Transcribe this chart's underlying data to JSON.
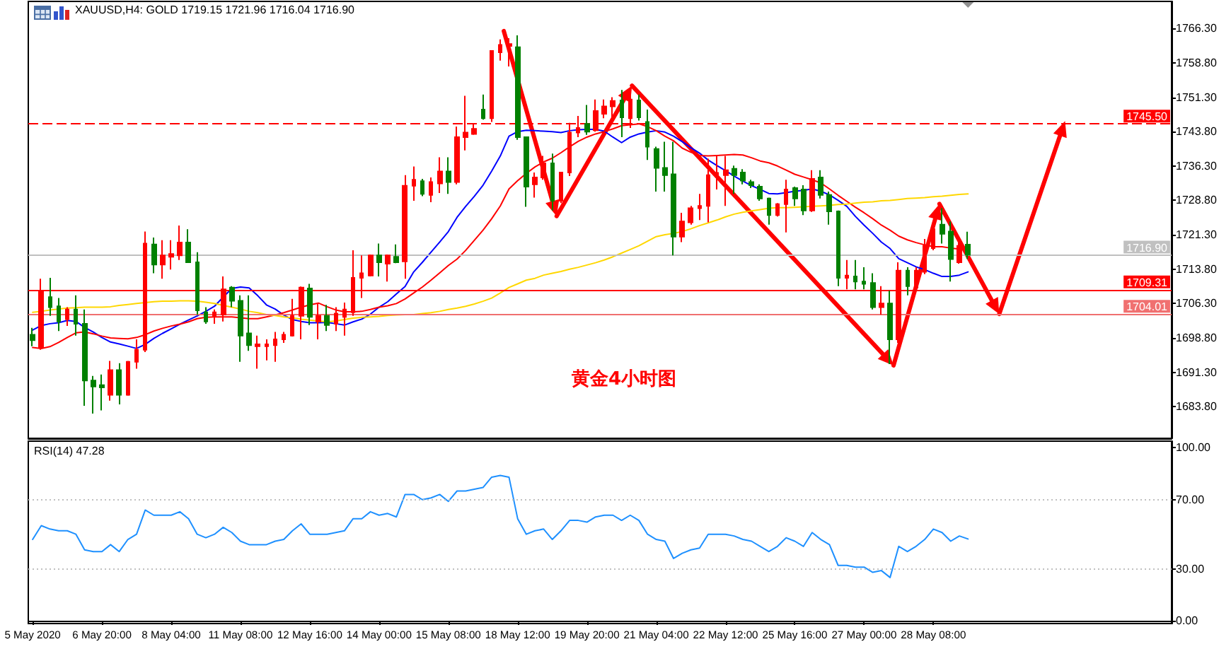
{
  "chart_data": [
    {
      "type": "candlestick",
      "title": "XAUUSD,H4: GOLD 1719.15 1721.96 1716.04 1716.90",
      "categories": [
        null,
        null,
        null,
        null,
        null,
        null,
        null,
        null,
        null,
        null,
        null,
        null,
        null,
        null,
        null,
        null,
        null,
        null,
        null,
        null,
        null,
        null,
        null,
        null,
        null,
        null,
        null,
        null,
        null,
        null,
        null,
        null,
        null,
        null,
        null,
        null,
        null,
        null,
        null,
        null,
        null,
        null,
        null,
        null,
        null,
        null,
        null,
        null,
        null,
        null,
        null,
        null,
        null,
        null,
        null,
        null,
        null,
        null,
        null,
        null,
        null,
        null,
        null,
        null,
        null,
        null,
        null,
        null,
        null,
        null,
        null,
        null,
        null,
        null,
        null,
        null,
        null,
        null,
        null,
        null,
        null,
        null,
        null,
        null,
        null,
        null,
        null,
        null,
        null,
        null,
        null,
        null,
        null,
        null,
        null,
        null,
        null,
        null,
        null,
        null,
        null,
        null,
        null,
        null,
        null,
        null,
        null,
        null,
        null,
        null,
        null,
        null,
        null,
        null,
        null,
        null,
        null,
        null,
        null,
        null,
        null,
        null,
        null,
        null,
        null,
        null,
        null,
        null,
        null,
        null,
        null,
        null
      ],
      "ohlc": [
        [
          1699.5,
          1701.0,
          1697.0,
          1698.3
        ],
        [
          1696.7,
          1711.7,
          1696.2,
          1709.1
        ],
        [
          1707.7,
          1711.9,
          1703.6,
          1705.5
        ],
        [
          1705.7,
          1707.5,
          1700.3,
          1702.4
        ],
        [
          1702.9,
          1705.5,
          1701.4,
          1705.0
        ],
        [
          1705.0,
          1708.1,
          1699.3,
          1701.9
        ],
        [
          1701.9,
          1705.0,
          1684.0,
          1689.5
        ],
        [
          1689.5,
          1690.5,
          1682.3,
          1688.2
        ],
        [
          1688.5,
          1690.8,
          1683.0,
          1688.0
        ],
        [
          1686.4,
          1693.8,
          1685.1,
          1691.8
        ],
        [
          1691.8,
          1693.3,
          1684.3,
          1686.4
        ],
        [
          1686.4,
          1693.8,
          1686.2,
          1693.6
        ],
        [
          1693.6,
          1698.5,
          1692.1,
          1696.2
        ],
        [
          1696.2,
          1722.0,
          1695.7,
          1719.4
        ],
        [
          1719.2,
          1720.7,
          1712.9,
          1714.8
        ],
        [
          1714.8,
          1720.1,
          1711.7,
          1716.8
        ],
        [
          1716.5,
          1720.1,
          1713.7,
          1717.1
        ],
        [
          1716.8,
          1723.3,
          1715.8,
          1719.6
        ],
        [
          1719.6,
          1722.5,
          1715.2,
          1715.3
        ],
        [
          1715.3,
          1717.5,
          1703.9,
          1704.8
        ],
        [
          1704.4,
          1705.5,
          1701.9,
          1702.4
        ],
        [
          1703.6,
          1705.0,
          1701.9,
          1704.4
        ],
        [
          1703.9,
          1712.2,
          1702.4,
          1709.4
        ],
        [
          1709.8,
          1710.1,
          1705.5,
          1706.9
        ],
        [
          1706.9,
          1708.1,
          1693.6,
          1699.3
        ],
        [
          1699.8,
          1708.1,
          1696.0,
          1697.2
        ],
        [
          1697.0,
          1699.3,
          1692.1,
          1697.4
        ],
        [
          1697.0,
          1698.5,
          1693.9,
          1697.4
        ],
        [
          1697.2,
          1700.1,
          1693.6,
          1698.5
        ],
        [
          1698.5,
          1700.1,
          1697.7,
          1699.5
        ],
        [
          1699.3,
          1707.3,
          1699.1,
          1703.6
        ],
        [
          1703.6,
          1710.0,
          1698.5,
          1709.8
        ],
        [
          1709.6,
          1710.6,
          1701.6,
          1703.4
        ],
        [
          1702.4,
          1706.5,
          1698.5,
          1703.6
        ],
        [
          1703.6,
          1706.0,
          1700.3,
          1701.6
        ],
        [
          1701.9,
          1705.5,
          1700.3,
          1704.1
        ],
        [
          1703.4,
          1706.5,
          1699.3,
          1705.0
        ],
        [
          1704.4,
          1717.9,
          1703.6,
          1711.9
        ],
        [
          1711.9,
          1716.8,
          1707.5,
          1712.9
        ],
        [
          1712.4,
          1717.0,
          1712.2,
          1716.8
        ],
        [
          1716.8,
          1719.4,
          1712.2,
          1715.3
        ],
        [
          1715.0,
          1717.0,
          1711.1,
          1716.8
        ],
        [
          1716.5,
          1719.2,
          1715.1,
          1715.3
        ],
        [
          1715.5,
          1734.3,
          1711.7,
          1732.0
        ],
        [
          1732.0,
          1736.2,
          1728.7,
          1733.3
        ],
        [
          1733.0,
          1733.5,
          1729.7,
          1730.2
        ],
        [
          1730.0,
          1733.8,
          1728.4,
          1732.8
        ],
        [
          1732.5,
          1738.2,
          1730.4,
          1735.1
        ],
        [
          1735.1,
          1738.2,
          1730.2,
          1732.8
        ],
        [
          1732.8,
          1744.9,
          1732.3,
          1742.6
        ],
        [
          1742.6,
          1751.6,
          1739.7,
          1743.6
        ],
        [
          1743.3,
          1745.4,
          1743.1,
          1744.4
        ],
        [
          1748.6,
          1751.9,
          1746.4,
          1746.7
        ],
        [
          1746.7,
          1761.4,
          1745.9,
          1761.4
        ],
        [
          1761.1,
          1763.9,
          1759.3,
          1762.7
        ],
        [
          1762.5,
          1764.2,
          1758.0,
          1762.9
        ],
        [
          1762.2,
          1764.8,
          1742.0,
          1742.6
        ],
        [
          1742.6,
          1742.6,
          1727.4,
          1731.8
        ],
        [
          1732.3,
          1734.9,
          1729.4,
          1733.8
        ],
        [
          1733.8,
          1738.5,
          1733.3,
          1736.9
        ],
        [
          1736.9,
          1739.0,
          1726.6,
          1728.7
        ],
        [
          1728.7,
          1734.9,
          1728.2,
          1734.9
        ],
        [
          1734.9,
          1745.7,
          1734.1,
          1743.6
        ],
        [
          1743.6,
          1747.2,
          1742.6,
          1744.6
        ],
        [
          1745.5,
          1749.6,
          1743.1,
          1743.8
        ],
        [
          1744.1,
          1750.8,
          1743.8,
          1748.3
        ],
        [
          1747.7,
          1750.8,
          1746.7,
          1749.3
        ],
        [
          1749.3,
          1751.3,
          1745.7,
          1750.5
        ],
        [
          1750.6,
          1752.9,
          1742.6,
          1746.9
        ],
        [
          1746.7,
          1752.9,
          1744.6,
          1750.8
        ],
        [
          1750.6,
          1751.9,
          1746.2,
          1746.9
        ],
        [
          1745.9,
          1748.6,
          1737.6,
          1740.5
        ],
        [
          1740.0,
          1740.5,
          1730.7,
          1735.9
        ],
        [
          1735.9,
          1741.6,
          1730.7,
          1734.3
        ],
        [
          1734.5,
          1741.6,
          1716.8,
          1720.9
        ],
        [
          1720.9,
          1726.1,
          1719.7,
          1724.2
        ],
        [
          1724.0,
          1727.6,
          1723.5,
          1727.1
        ],
        [
          1727.1,
          1730.2,
          1724.5,
          1727.6
        ],
        [
          1727.6,
          1737.9,
          1724.0,
          1734.3
        ],
        [
          1734.0,
          1738.5,
          1731.2,
          1734.8
        ],
        [
          1734.3,
          1738.5,
          1727.6,
          1735.4
        ],
        [
          1735.7,
          1736.4,
          1730.2,
          1734.3
        ],
        [
          1734.9,
          1735.6,
          1732.3,
          1733.1
        ],
        [
          1732.8,
          1733.3,
          1731.5,
          1732.1
        ],
        [
          1731.8,
          1732.3,
          1728.7,
          1729.2
        ],
        [
          1729.2,
          1729.4,
          1723.5,
          1725.6
        ],
        [
          1725.6,
          1728.2,
          1725.3,
          1728.0
        ],
        [
          1728.0,
          1733.3,
          1721.8,
          1731.2
        ],
        [
          1731.5,
          1731.8,
          1727.6,
          1729.2
        ],
        [
          1731.2,
          1732.1,
          1725.6,
          1726.6
        ],
        [
          1726.6,
          1735.4,
          1726.3,
          1733.5
        ],
        [
          1733.8,
          1735.4,
          1729.2,
          1730.0
        ],
        [
          1730.0,
          1730.7,
          1723.5,
          1726.4
        ],
        [
          1726.4,
          1726.6,
          1710.1,
          1711.9
        ],
        [
          1711.9,
          1715.8,
          1709.4,
          1712.4
        ],
        [
          1712.2,
          1715.8,
          1709.4,
          1711.1
        ],
        [
          1711.1,
          1714.2,
          1709.4,
          1710.6
        ],
        [
          1710.8,
          1712.9,
          1705.0,
          1705.5
        ],
        [
          1705.5,
          1710.1,
          1703.9,
          1706.3
        ],
        [
          1706.3,
          1709.1,
          1693.1,
          1698.5
        ],
        [
          1698.5,
          1715.3,
          1697.7,
          1713.5
        ],
        [
          1713.5,
          1714.2,
          1708.1,
          1710.1
        ],
        [
          1709.8,
          1714.2,
          1709.6,
          1713.5
        ],
        [
          1713.2,
          1720.4,
          1712.7,
          1718.9
        ],
        [
          1718.4,
          1724.0,
          1717.9,
          1722.5
        ],
        [
          1723.5,
          1727.1,
          1719.4,
          1721.5
        ],
        [
          1722.0,
          1724.2,
          1711.1,
          1716.0
        ],
        [
          1715.3,
          1719.9,
          1715.0,
          1718.9
        ],
        [
          1719.15,
          1721.96,
          1716.04,
          1716.9
        ],
        null,
        null,
        null,
        null,
        null,
        null,
        null,
        null,
        null,
        null,
        null,
        null,
        null,
        null,
        null,
        null,
        null,
        null,
        null,
        null,
        null,
        null,
        null
      ],
      "colors": [
        "#008000",
        "#ff0000",
        "#008000",
        "#008000",
        "#ff0000",
        "#008000",
        "#008000",
        "#008000",
        "#008000",
        "#ff0000",
        "#008000",
        "#ff0000",
        "#ff0000",
        "#ff0000",
        "#008000",
        "#ff0000",
        "#ff0000",
        "#ff0000",
        "#008000",
        "#008000",
        "#008000",
        "#ff0000",
        "#ff0000",
        "#008000",
        "#008000",
        "#008000",
        "#ff0000",
        "#ff0000",
        "#ff0000",
        "#ff0000",
        "#ff0000",
        "#ff0000",
        "#008000",
        "#ff0000",
        "#008000",
        "#ff0000",
        "#ff0000",
        "#ff0000",
        "#ff0000",
        "#ff0000",
        "#008000",
        "#ff0000",
        "#008000",
        "#ff0000",
        "#ff0000",
        "#008000",
        "#ff0000",
        "#ff0000",
        "#008000",
        "#ff0000",
        "#ff0000",
        "#ff0000",
        "#008000",
        "#ff0000",
        "#ff0000",
        "#ff0000",
        "#008000",
        "#008000",
        "#ff0000",
        "#ff0000",
        "#008000",
        "#ff0000",
        "#ff0000",
        "#ff0000",
        "#008000",
        "#ff0000",
        "#ff0000",
        "#ff0000",
        "#008000",
        "#ff0000",
        "#008000",
        "#008000",
        "#008000",
        "#008000",
        "#008000",
        "#ff0000",
        "#ff0000",
        "#ff0000",
        "#ff0000",
        "#ff0000",
        "#ff0000",
        "#008000",
        "#008000",
        "#008000",
        "#008000",
        "#008000",
        "#ff0000",
        "#ff0000",
        "#008000",
        "#008000",
        "#ff0000",
        "#008000",
        "#008000",
        "#008000",
        "#ff0000",
        "#008000",
        "#008000",
        "#008000",
        "#ff0000",
        "#008000",
        "#ff0000",
        "#008000",
        "#ff0000",
        "#ff0000",
        "#ff0000",
        "#008000",
        "#008000",
        "#ff0000",
        "#008000",
        null,
        null,
        null,
        null,
        null,
        null,
        null,
        null,
        null,
        null,
        null,
        null,
        null,
        null,
        null,
        null,
        null,
        null,
        null,
        null,
        null,
        null,
        null
      ],
      "series": [
        {
          "type": "line",
          "color": "#0000ff",
          "values": [
            1700.5,
            1701.5,
            1701.9,
            1702.1,
            1702.6,
            1702.4,
            1701.1,
            1700.1,
            1698.9,
            1697.9,
            1697.5,
            1697.0,
            1696.5,
            1697.4,
            1698.7,
            1699.8,
            1700.8,
            1701.8,
            1702.7,
            1703.6,
            1704.6,
            1705.7,
            1707.7,
            1709.6,
            1709.9,
            1709.7,
            1708.0,
            1706.0,
            1705.1,
            1703.8,
            1702.8,
            1702.4,
            1702.1,
            1702.1,
            1702.2,
            1701.9,
            1701.6,
            1702.3,
            1702.9,
            1704.0,
            1705.5,
            1706.7,
            1708.4,
            1710.0,
            1713.2,
            1715.3,
            1717.5,
            1719.7,
            1722.0,
            1725.1,
            1727.5,
            1729.7,
            1732.1,
            1735.2,
            1738.5,
            1742.8,
            1743.8,
            1744.1,
            1744.0,
            1743.9,
            1743.8,
            1743.6,
            1744.0,
            1744.2,
            1744.3,
            1744.3,
            1743.9,
            1742.6,
            1741.4,
            1742.6,
            1743.3,
            1743.7,
            1744.0,
            1743.7,
            1742.8,
            1741.6,
            1740.3,
            1739.1,
            1737.6,
            1736.4,
            1735.3,
            1734.1,
            1733.0,
            1732.0,
            1731.2,
            1730.3,
            1730.2,
            1730.5,
            1730.8,
            1731.0,
            1731.3,
            1730.8,
            1730.0,
            1728.8,
            1727.5,
            1725.3,
            1723.4,
            1721.6,
            1719.7,
            1718.3,
            1716.1,
            1715.2,
            1714.3,
            1713.7,
            1712.9,
            1712.2,
            1712.2,
            1712.5,
            1713.2,
            null,
            null,
            null,
            null,
            null,
            null,
            null,
            null,
            null,
            null,
            null,
            null,
            null,
            null,
            null,
            null,
            null,
            null,
            null,
            null,
            null,
            null,
            null
          ]
        },
        {
          "type": "line",
          "color": "#ff0000",
          "values": [
            1696.7,
            1696.5,
            1696.9,
            1697.8,
            1698.9,
            1699.9,
            1700.1,
            1699.7,
            1699.2,
            1698.8,
            1698.7,
            1698.6,
            1698.9,
            1699.5,
            1700.3,
            1700.9,
            1701.4,
            1701.8,
            1702.3,
            1703.0,
            1703.3,
            1703.4,
            1703.4,
            1703.4,
            1703.2,
            1703.0,
            1703.0,
            1703.4,
            1703.8,
            1704.3,
            1704.9,
            1705.5,
            1706.0,
            1706.4,
            1705.6,
            1704.9,
            1704.5,
            1704.5,
            1704.6,
            1705.0,
            1705.5,
            1705.8,
            1706.3,
            1707.3,
            1708.6,
            1709.9,
            1711.4,
            1713.0,
            1714.6,
            1716.0,
            1717.9,
            1720.1,
            1722.3,
            1724.8,
            1727.6,
            1731.3,
            1733.1,
            1734.7,
            1736.1,
            1737.2,
            1738.0,
            1739.2,
            1740.5,
            1741.7,
            1742.6,
            1743.3,
            1743.8,
            1744.4,
            1745.1,
            1745.3,
            1745.5,
            1744.9,
            1744.0,
            1742.8,
            1741.8,
            1740.2,
            1739.3,
            1738.6,
            1738.5,
            1738.6,
            1738.7,
            1738.8,
            1738.7,
            1738.1,
            1737.4,
            1737.0,
            1736.3,
            1735.4,
            1734.5,
            1733.9,
            1733.3,
            1732.6,
            1731.3,
            1729.9,
            1728.6,
            1727.3,
            1726.1,
            1724.8,
            1723.4,
            1722.3,
            1721.0,
            1720.2,
            1719.6,
            1719.1,
            1718.7,
            1718.7,
            1718.4,
            1718.2,
            1718.1,
            null,
            null,
            null,
            null,
            null,
            null,
            null,
            null,
            null,
            null,
            null,
            null,
            null,
            null,
            null,
            null,
            null,
            null,
            null,
            null,
            null,
            null,
            null
          ]
        },
        {
          "type": "line",
          "color": "#ffd700",
          "values": [
            1704.4,
            1704.6,
            1704.9,
            1705.1,
            1705.3,
            1705.4,
            1705.5,
            1705.5,
            1705.5,
            1705.6,
            1705.9,
            1706.1,
            1706.3,
            1706.5,
            1706.7,
            1706.8,
            1706.8,
            1706.9,
            1706.9,
            1706.8,
            1706.6,
            1706.3,
            1705.9,
            1705.5,
            1705.1,
            1704.6,
            1704.3,
            1703.9,
            1703.7,
            1703.4,
            1703.2,
            1702.9,
            1702.7,
            1702.5,
            1702.3,
            1702.5,
            1702.8,
            1703.1,
            1703.3,
            1703.4,
            1703.5,
            1703.7,
            1703.8,
            1703.9,
            1703.9,
            1704.1,
            1704.3,
            1704.6,
            1705.0,
            1705.3,
            1705.7,
            1706.2,
            1706.8,
            1707.5,
            1708.6,
            1709.8,
            1710.6,
            1711.4,
            1711.8,
            1712.5,
            1712.9,
            1713.3,
            1713.8,
            1714.2,
            1714.7,
            1715.2,
            1715.8,
            1716.5,
            1717.3,
            1718.1,
            1718.9,
            1719.9,
            1720.9,
            1721.3,
            1721.6,
            1722.0,
            1722.6,
            1723.3,
            1723.9,
            1724.5,
            1725.2,
            1725.8,
            1726.2,
            1726.5,
            1726.8,
            1727.1,
            1727.2,
            1727.2,
            1727.3,
            1727.4,
            1727.5,
            1727.6,
            1727.7,
            1727.9,
            1728.0,
            1728.2,
            1728.4,
            1728.5,
            1728.7,
            1728.8,
            1729.0,
            1729.2,
            1729.3,
            1729.4,
            1729.6,
            1729.7,
            1729.9,
            1730.1,
            1730.2,
            null,
            null,
            null,
            null,
            null,
            null,
            null,
            null,
            null,
            null,
            null,
            null,
            null,
            null,
            null,
            null,
            null,
            null,
            null,
            null,
            null,
            null,
            null
          ]
        }
      ],
      "ylim": [
        1676.9,
        1772.2
      ],
      "yticks": [
        {
          "value": 1683.8,
          "label": "1683.80"
        },
        {
          "value": 1691.3,
          "label": "1691.30"
        },
        {
          "value": 1698.8,
          "label": "1698.80"
        },
        {
          "value": 1706.3,
          "label": "1706.30"
        },
        {
          "value": 1713.8,
          "label": "1713.80"
        },
        {
          "value": 1721.3,
          "label": "1721.30"
        },
        {
          "value": 1728.8,
          "label": "1728.80"
        },
        {
          "value": 1736.3,
          "label": "1736.30"
        },
        {
          "value": 1743.8,
          "label": "1743.80"
        },
        {
          "value": 1751.3,
          "label": "1751.30"
        },
        {
          "value": 1758.8,
          "label": "1758.80"
        },
        {
          "value": 1766.3,
          "label": "1766.30"
        }
      ],
      "tick_labels": "y",
      "marker": "none",
      "ref_lines": [
        {
          "axis": "y",
          "value": 1745.5,
          "label": "1745.50",
          "color": "#ff0000",
          "line_style": "dashed"
        },
        {
          "axis": "y",
          "value": 1716.9,
          "label": "1716.90",
          "color": "#c0c0c0"
        },
        {
          "axis": "y",
          "value": 1709.31,
          "label": "1709.31",
          "color": "#ff0000"
        },
        {
          "axis": "y",
          "value": 1704.01,
          "label": "1704.01",
          "color": "#f07070"
        }
      ],
      "annotations": [
        "黄金4小时图"
      ]
    },
    {
      "type": "line",
      "title": "RSI(14) 47.28",
      "categories": [
        "5 May 2020",
        null,
        null,
        null,
        null,
        null,
        null,
        null,
        "6 May 20:00",
        null,
        null,
        null,
        null,
        null,
        null,
        null,
        "8 May 04:00",
        null,
        null,
        null,
        null,
        null,
        null,
        null,
        "11 May 08:00",
        null,
        null,
        null,
        null,
        null,
        null,
        null,
        "12 May 16:00",
        null,
        null,
        null,
        null,
        null,
        null,
        null,
        "14 May 00:00",
        null,
        null,
        null,
        null,
        null,
        null,
        null,
        "15 May 08:00",
        null,
        null,
        null,
        null,
        null,
        null,
        null,
        "18 May 12:00",
        null,
        null,
        null,
        null,
        null,
        null,
        null,
        "19 May 20:00",
        null,
        null,
        null,
        null,
        null,
        null,
        null,
        "21 May 04:00",
        null,
        null,
        null,
        null,
        null,
        null,
        null,
        "22 May 12:00",
        null,
        null,
        null,
        null,
        null,
        null,
        null,
        "25 May 16:00",
        null,
        null,
        null,
        null,
        null,
        null,
        null,
        "27 May 00:00",
        null,
        null,
        null,
        null,
        null,
        null,
        null,
        "28 May 08:00",
        null,
        null,
        null,
        null,
        null,
        null,
        null,
        null,
        null,
        null,
        null,
        null,
        null,
        null,
        null,
        null,
        null,
        null,
        null,
        null,
        null,
        null,
        null,
        null,
        null,
        null,
        null
      ],
      "values": [
        47,
        55,
        53,
        52,
        52,
        50,
        41,
        40,
        40,
        44,
        40,
        47,
        50,
        64,
        61,
        61,
        61,
        63,
        59,
        50,
        48,
        50,
        54,
        51,
        46,
        44,
        44,
        44,
        46,
        47,
        52,
        56,
        50,
        50,
        50,
        51,
        52,
        59,
        59,
        63,
        61,
        62,
        60,
        73,
        73,
        70,
        71,
        73,
        69,
        75,
        75,
        76,
        77,
        83,
        84,
        83,
        59,
        50,
        52,
        53,
        47,
        52,
        58,
        58,
        57,
        60,
        61,
        61,
        58,
        61,
        58,
        50,
        47,
        46,
        36,
        39,
        41,
        42,
        50,
        50,
        50,
        49,
        47,
        46,
        43,
        40,
        43,
        48,
        46,
        43,
        51,
        47,
        44,
        32,
        32,
        31,
        31,
        28,
        29,
        25,
        43,
        40,
        43,
        47,
        53,
        51,
        46,
        49,
        47.28,
        null,
        null,
        null,
        null,
        null,
        null,
        null,
        null,
        null,
        null,
        null,
        null,
        null,
        null,
        null,
        null,
        null,
        null,
        null,
        null,
        null,
        null,
        null
      ],
      "color": "#1e90ff",
      "ylim": [
        -1.6,
        103.8
      ],
      "yticks": [
        {
          "value": 0,
          "label": "0.00"
        },
        {
          "value": 30,
          "label": "30.00"
        },
        {
          "value": 70,
          "label": "70.00"
        },
        {
          "value": 100,
          "label": "100.00"
        }
      ],
      "marker": "none",
      "ref_lines": [
        {
          "axis": "y",
          "value": 70,
          "color": "#c0c0c0",
          "line_style": "dotted"
        },
        {
          "axis": "y",
          "value": 30,
          "color": "#c0c0c0",
          "line_style": "dotted"
        }
      ]
    }
  ]
}
